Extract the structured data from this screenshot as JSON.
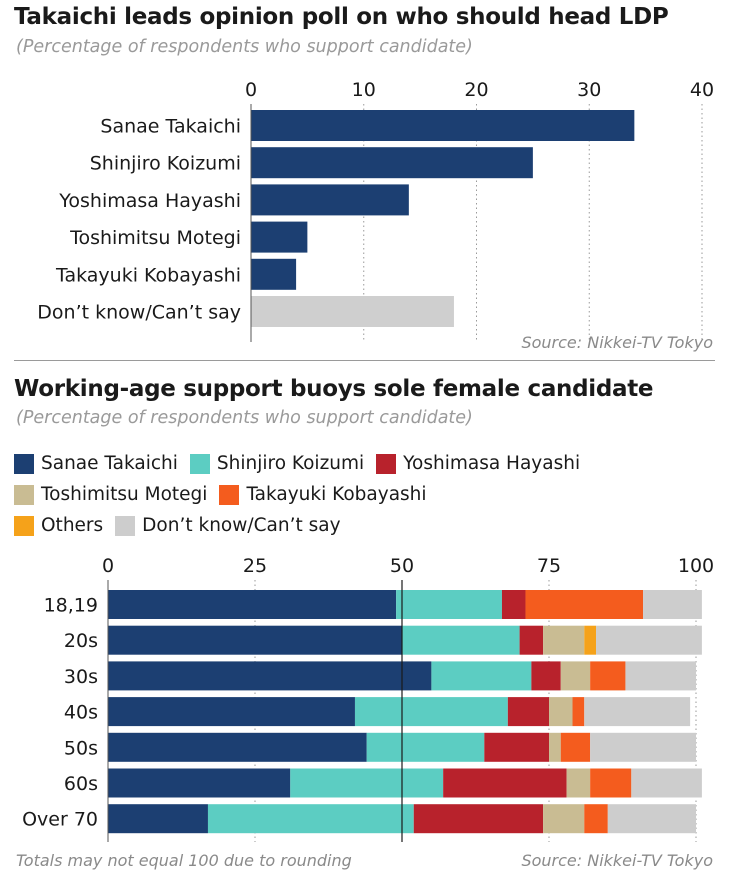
{
  "chart_data": [
    {
      "type": "bar",
      "orientation": "horizontal",
      "title": "Takaichi leads opinion poll on who should head LDP",
      "subtitle": "(Percentage of respondents who support candidate)",
      "categories": [
        "Sanae Takaichi",
        "Shinjiro Koizumi",
        "Yoshimasa Hayashi",
        "Toshimitsu Motegi",
        "Takayuki Kobayashi",
        "Don’t know/Can’t say"
      ],
      "values": [
        34,
        25,
        14,
        5,
        4,
        18
      ],
      "bar_colors": [
        "#1c3f72",
        "#1c3f72",
        "#1c3f72",
        "#1c3f72",
        "#1c3f72",
        "#cfcfcf"
      ],
      "xlim": [
        0,
        40
      ],
      "ticks": [
        0,
        10,
        20,
        30,
        40
      ],
      "grid": true,
      "source": "Source: Nikkei-TV Tokyo"
    },
    {
      "type": "bar",
      "orientation": "horizontal",
      "stacked": true,
      "title": "Working-age support buoys sole female candidate",
      "subtitle": "(Percentage of respondents who support candidate)",
      "categories": [
        "18,19",
        "20s",
        "30s",
        "40s",
        "50s",
        "60s",
        "Over 70"
      ],
      "series": [
        {
          "name": "Sanae Takaichi",
          "color": "#1c3f72",
          "values": [
            49,
            50,
            55,
            42,
            44,
            31,
            17
          ]
        },
        {
          "name": "Shinjiro Koizumi",
          "color": "#5ccdc2",
          "values": [
            18,
            20,
            17,
            26,
            20,
            26,
            35
          ]
        },
        {
          "name": "Yoshimasa Hayashi",
          "color": "#b8222c",
          "values": [
            4,
            4,
            5,
            7,
            11,
            21,
            22
          ]
        },
        {
          "name": "Toshimitsu Motegi",
          "color": "#c9bc93",
          "values": [
            0,
            7,
            5,
            4,
            2,
            4,
            7
          ]
        },
        {
          "name": "Takayuki Kobayashi",
          "color": "#f45c1e",
          "values": [
            20,
            0,
            6,
            2,
            5,
            7,
            4
          ]
        },
        {
          "name": "Others",
          "color": "#f5a21a",
          "values": [
            0,
            2,
            0,
            0,
            0,
            0,
            0
          ]
        },
        {
          "name": "Don’t know/Can’t say",
          "color": "#cdcdcd",
          "values": [
            10,
            18,
            12,
            18,
            18,
            12,
            15
          ]
        }
      ],
      "xlim": [
        0,
        100
      ],
      "ticks": [
        0,
        25,
        50,
        75,
        100
      ],
      "grid": true,
      "legend_position": "top",
      "note": "Totals may not equal 100 due to rounding",
      "source": "Source: Nikkei-TV Tokyo"
    }
  ]
}
